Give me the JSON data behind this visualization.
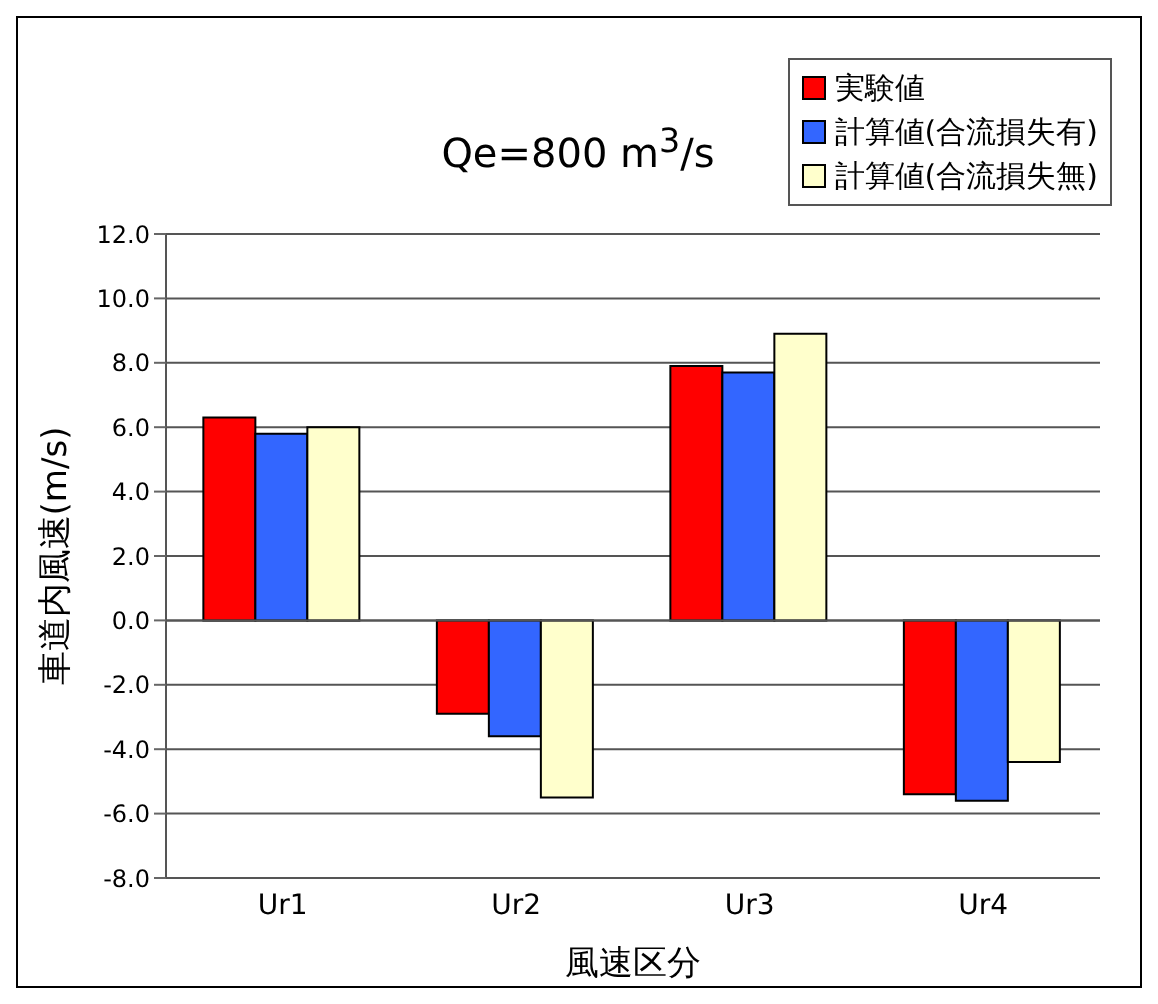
{
  "chart_data": {
    "type": "bar",
    "title": "Qe=800 m$^{3}$/s",
    "xlabel": "風速区分",
    "ylabel": "車道内風速(m/s)",
    "categories": [
      "Ur1",
      "Ur2",
      "Ur3",
      "Ur4"
    ],
    "series": [
      {
        "name": "実験値",
        "color": "#ff0000",
        "values": [
          6.3,
          -2.9,
          7.9,
          -5.4
        ]
      },
      {
        "name": "計算値(合流損失有)",
        "color": "#3366ff",
        "values": [
          5.8,
          -3.6,
          7.7,
          -5.6
        ]
      },
      {
        "name": "計算値(合流損失無)",
        "color": "#ffffcc",
        "values": [
          6.0,
          -5.5,
          8.9,
          -4.4
        ]
      }
    ],
    "ylim": [
      -8,
      12
    ],
    "yticks": [
      {
        "value": -8,
        "label": "-8.0"
      },
      {
        "value": -6,
        "label": "-6.0"
      },
      {
        "value": -4,
        "label": "-4.0"
      },
      {
        "value": -2,
        "label": "-2.0"
      },
      {
        "value": 0,
        "label": "0.0"
      },
      {
        "value": 2,
        "label": "2.0"
      },
      {
        "value": 4,
        "label": "4.0"
      },
      {
        "value": 6,
        "label": "6.0"
      },
      {
        "value": 8,
        "label": "8.0"
      },
      {
        "value": 10,
        "label": "10.0"
      },
      {
        "value": 12,
        "label": "12.0"
      }
    ],
    "grid": "y",
    "legend": "top right"
  }
}
